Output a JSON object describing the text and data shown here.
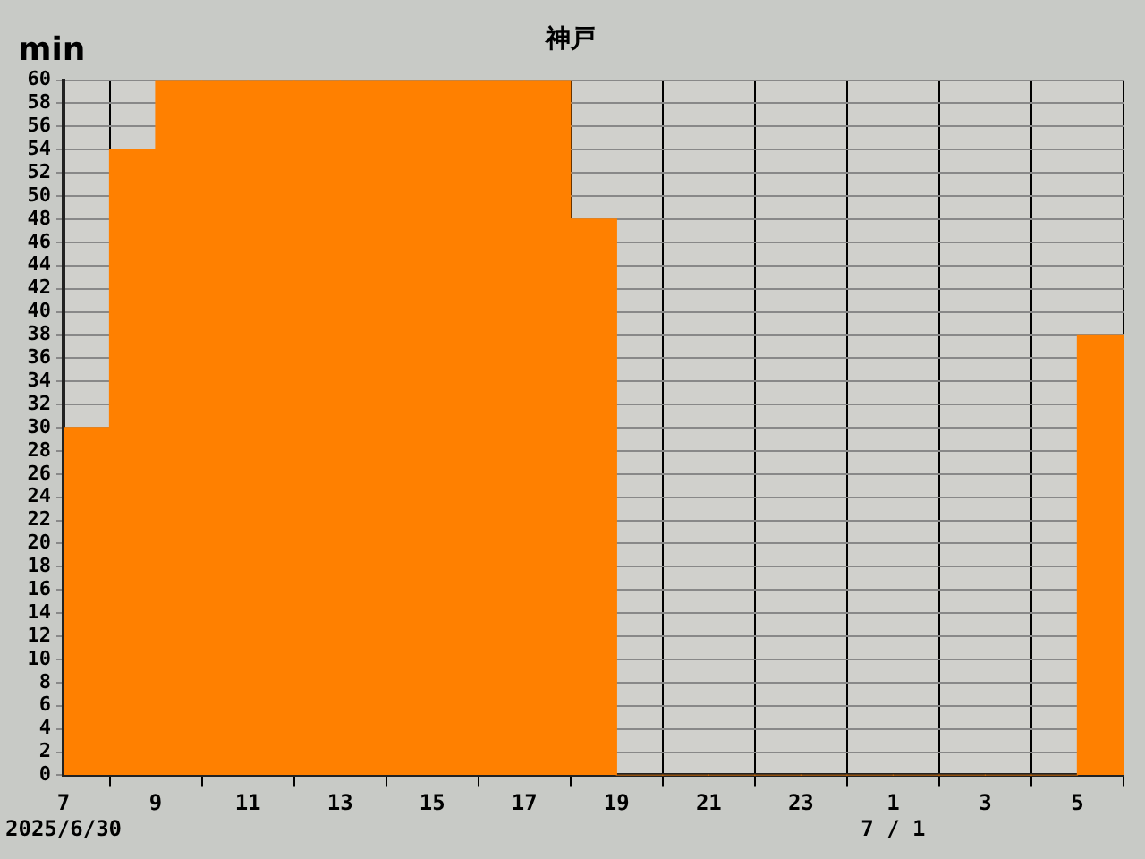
{
  "chart_data": {
    "type": "histogram",
    "title": "神戸",
    "ylabel": "min",
    "bins": [
      "2025-06-30T07:00",
      "2025-06-30T08:00",
      "2025-06-30T09:00",
      "2025-06-30T10:00",
      "2025-06-30T11:00",
      "2025-06-30T12:00",
      "2025-06-30T13:00",
      "2025-06-30T14:00",
      "2025-06-30T15:00",
      "2025-06-30T16:00",
      "2025-06-30T17:00",
      "2025-06-30T18:00",
      "2025-06-30T19:00",
      "2025-06-30T20:00",
      "2025-06-30T21:00",
      "2025-06-30T22:00",
      "2025-06-30T23:00",
      "2025-07-01T00:00",
      "2025-07-01T01:00",
      "2025-07-01T02:00",
      "2025-07-01T03:00",
      "2025-07-01T04:00",
      "2025-07-01T05:00",
      "2025-07-01T06:00"
    ],
    "values": [
      30,
      54,
      60,
      60,
      60,
      60,
      60,
      60,
      60,
      60,
      60,
      48,
      0,
      0,
      0,
      0,
      0,
      0,
      0,
      0,
      0,
      0,
      38
    ],
    "color": "#ff8000",
    "xlim": [
      "2025-06-30T07:00",
      "2025-07-01T06:00"
    ],
    "xticks": [
      {
        "value": "2025-06-30T07:00",
        "label": "7\n2025/6/30"
      },
      {
        "value": "2025-06-30T09:00",
        "label": "9"
      },
      {
        "value": "2025-06-30T11:00",
        "label": "11"
      },
      {
        "value": "2025-06-30T13:00",
        "label": "13"
      },
      {
        "value": "2025-06-30T15:00",
        "label": "15"
      },
      {
        "value": "2025-06-30T17:00",
        "label": "17"
      },
      {
        "value": "2025-06-30T19:00",
        "label": "19"
      },
      {
        "value": "2025-06-30T21:00",
        "label": "21"
      },
      {
        "value": "2025-06-30T23:00",
        "label": "23"
      },
      {
        "value": "2025-07-01T01:00",
        "label": "1\n7 / 1"
      },
      {
        "value": "2025-07-01T03:00",
        "label": "3"
      },
      {
        "value": "2025-07-01T05:00",
        "label": "5"
      }
    ],
    "ylim": [
      0,
      60
    ],
    "yticks": [
      0,
      2,
      4,
      6,
      8,
      10,
      12,
      14,
      16,
      18,
      20,
      22,
      24,
      26,
      28,
      30,
      32,
      34,
      36,
      38,
      40,
      42,
      44,
      46,
      48,
      50,
      52,
      54,
      56,
      58,
      60
    ],
    "grid": true,
    "legend": false
  }
}
